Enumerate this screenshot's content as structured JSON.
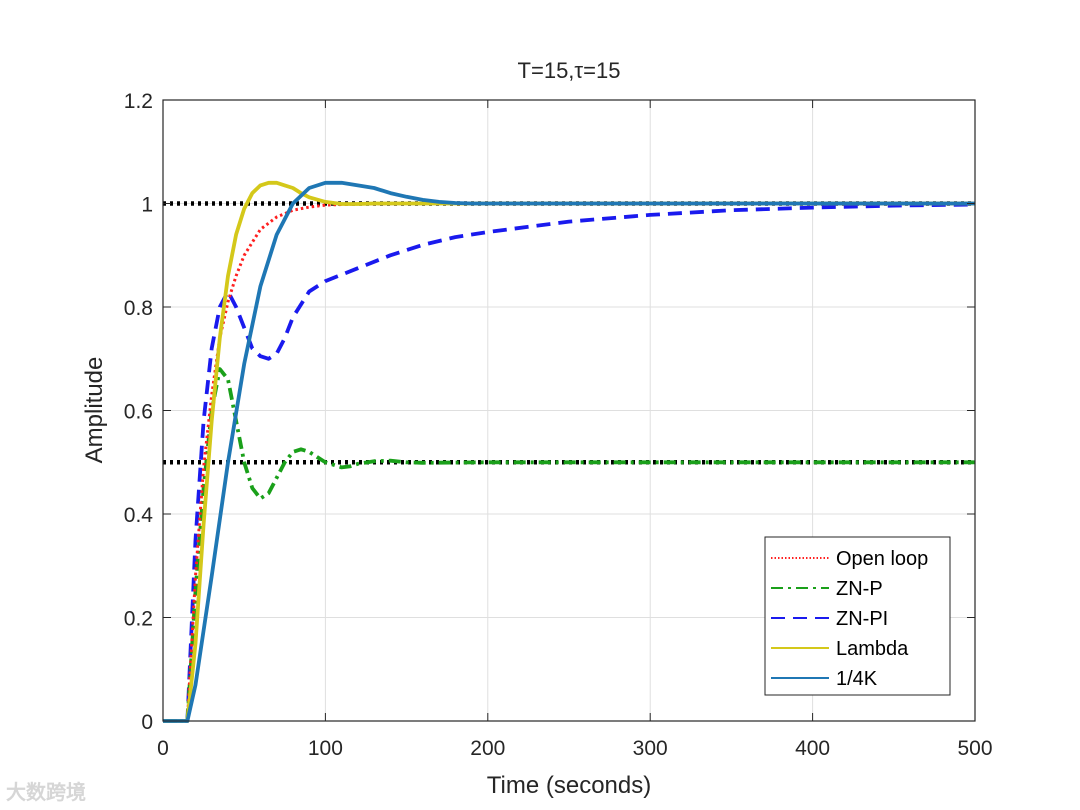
{
  "watermark": "大数跨境",
  "chart_data": {
    "type": "line",
    "title": "T=15,τ=15",
    "xlabel": "Time (seconds)",
    "ylabel": "Amplitude",
    "xlim": [
      0,
      500
    ],
    "ylim": [
      0,
      1.2
    ],
    "xticks": [
      0,
      100,
      200,
      300,
      400,
      500
    ],
    "yticks": [
      0,
      0.2,
      0.4,
      0.6,
      0.8,
      1,
      1.2
    ],
    "xtick_labels": [
      "0",
      "100",
      "200",
      "300",
      "400",
      "500"
    ],
    "ytick_labels": [
      "0",
      "0.2",
      "0.4",
      "0.6",
      "0.8",
      "1",
      "1.2"
    ],
    "grid": true,
    "legend_position": "bottom-right",
    "reference_lines": [
      {
        "y": 1.0,
        "color": "#000000",
        "style": "dotted"
      },
      {
        "y": 0.5,
        "color": "#000000",
        "style": "dotted"
      }
    ],
    "series": [
      {
        "name": "Open loop",
        "color": "#ff2020",
        "style": "dotted",
        "x": [
          0,
          15,
          20,
          25,
          30,
          35,
          40,
          45,
          50,
          60,
          70,
          80,
          90,
          100,
          110,
          120,
          150,
          200,
          300,
          400,
          500
        ],
        "y": [
          0,
          0,
          0.28,
          0.49,
          0.63,
          0.74,
          0.81,
          0.86,
          0.9,
          0.95,
          0.974,
          0.987,
          0.993,
          0.997,
          0.998,
          0.999,
          1.0,
          1.0,
          1.0,
          1.0,
          1.0
        ]
      },
      {
        "name": "ZN-P",
        "color": "#1aa01a",
        "style": "dashdot",
        "x": [
          0,
          15,
          20,
          25,
          30,
          35,
          40,
          45,
          50,
          55,
          60,
          65,
          70,
          75,
          80,
          85,
          90,
          95,
          100,
          105,
          110,
          115,
          120,
          130,
          140,
          150,
          160,
          200,
          300,
          400,
          500
        ],
        "y": [
          0,
          0,
          0.25,
          0.45,
          0.6,
          0.68,
          0.66,
          0.58,
          0.5,
          0.45,
          0.43,
          0.44,
          0.47,
          0.5,
          0.52,
          0.525,
          0.52,
          0.51,
          0.5,
          0.495,
          0.49,
          0.492,
          0.497,
          0.502,
          0.503,
          0.5,
          0.499,
          0.5,
          0.5,
          0.5,
          0.5
        ]
      },
      {
        "name": "ZN-PI",
        "color": "#1a1aee",
        "style": "dashed",
        "x": [
          0,
          15,
          20,
          25,
          30,
          35,
          40,
          45,
          50,
          55,
          60,
          65,
          70,
          75,
          80,
          90,
          100,
          120,
          140,
          160,
          180,
          200,
          250,
          300,
          350,
          400,
          450,
          500
        ],
        "y": [
          0,
          0,
          0.35,
          0.58,
          0.72,
          0.8,
          0.83,
          0.8,
          0.76,
          0.72,
          0.705,
          0.7,
          0.71,
          0.74,
          0.78,
          0.83,
          0.85,
          0.875,
          0.9,
          0.92,
          0.935,
          0.945,
          0.965,
          0.978,
          0.987,
          0.992,
          0.996,
          0.998
        ]
      },
      {
        "name": "Lambda",
        "color": "#d4c81a",
        "style": "solid",
        "x": [
          0,
          15,
          20,
          25,
          30,
          35,
          40,
          45,
          50,
          55,
          60,
          65,
          70,
          75,
          80,
          85,
          90,
          100,
          110,
          120,
          130,
          150,
          200,
          300,
          400,
          500
        ],
        "y": [
          0,
          0,
          0.15,
          0.38,
          0.58,
          0.74,
          0.86,
          0.94,
          0.99,
          1.02,
          1.035,
          1.04,
          1.04,
          1.035,
          1.03,
          1.02,
          1.012,
          1.003,
          0.999,
          0.999,
          1.0,
          1.0,
          1.0,
          1.0,
          1.0,
          1.0
        ]
      },
      {
        "name": "1/4K",
        "color": "#1f77b4",
        "style": "solid",
        "x": [
          0,
          15,
          20,
          30,
          40,
          50,
          60,
          70,
          80,
          90,
          100,
          110,
          120,
          130,
          140,
          150,
          160,
          170,
          180,
          190,
          200,
          250,
          300,
          400,
          500
        ],
        "y": [
          0,
          0,
          0.07,
          0.28,
          0.5,
          0.69,
          0.84,
          0.94,
          1.0,
          1.03,
          1.04,
          1.04,
          1.035,
          1.03,
          1.02,
          1.013,
          1.007,
          1.003,
          1.001,
          1.0,
          1.0,
          1.0,
          1.0,
          1.0,
          1.0
        ]
      }
    ]
  }
}
